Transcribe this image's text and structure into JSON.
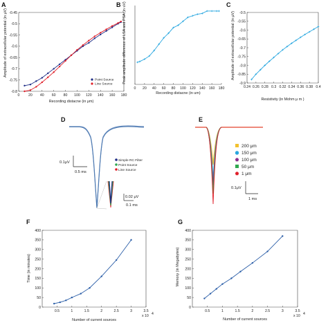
{
  "chart_data": [
    {
      "panel": "A",
      "type": "line",
      "xlabel": "Recording distacne (in μm)",
      "ylabel": "Amplitude  of  extracellular potential (in μV)",
      "xlim": [
        0,
        180
      ],
      "ylim": [
        -0.8,
        -0.45
      ],
      "xticks": [
        0,
        20,
        40,
        60,
        80,
        100,
        120,
        140,
        160,
        180
      ],
      "yticks": [
        -0.8,
        -0.75,
        -0.7,
        -0.65,
        -0.6,
        -0.55,
        -0.5,
        -0.45
      ],
      "xtick_labels": [
        "0",
        "20",
        "40",
        "60",
        "80",
        "100",
        "120",
        "140",
        "160",
        "180"
      ],
      "ytick_labels": [
        "-0.8",
        "-0.75",
        "-0.7",
        "-0.65",
        "-0.6",
        "-0.55",
        "-0.5",
        "-0.45"
      ],
      "legend_position": "bottom-right",
      "series": [
        {
          "name": "Point Source",
          "color": "#1f2d86",
          "x": [
            10,
            20,
            30,
            40,
            50,
            60,
            70,
            80,
            90,
            100,
            110,
            120,
            130,
            140,
            150,
            160,
            170,
            175
          ],
          "y": [
            -0.775,
            -0.77,
            -0.755,
            -0.74,
            -0.72,
            -0.7,
            -0.68,
            -0.66,
            -0.64,
            -0.62,
            -0.6,
            -0.585,
            -0.565,
            -0.548,
            -0.532,
            -0.516,
            -0.5,
            -0.493
          ]
        },
        {
          "name": "Line Source",
          "color": "#e0202a",
          "x": [
            10,
            20,
            30,
            40,
            50,
            60,
            70,
            80,
            90,
            100,
            110,
            120,
            130,
            140,
            150,
            160,
            170,
            175
          ],
          "y": [
            -0.8,
            -0.795,
            -0.78,
            -0.76,
            -0.738,
            -0.715,
            -0.69,
            -0.665,
            -0.64,
            -0.616,
            -0.595,
            -0.575,
            -0.556,
            -0.54,
            -0.525,
            -0.51,
            -0.497,
            -0.49
          ]
        }
      ]
    },
    {
      "panel": "B",
      "type": "line",
      "xlabel": "Recording distacne (in um)",
      "ylabel": "Peak amplitude difference of LSA and PSA (in uV)",
      "xlim": [
        0,
        180
      ],
      "ylim": [
        0,
        1
      ],
      "xticks": [
        0,
        20,
        40,
        60,
        80,
        100,
        120,
        140,
        160,
        180
      ],
      "xtick_labels": [
        "0",
        "20",
        "40",
        "60",
        "80",
        "100",
        "120",
        "140",
        "160",
        "180"
      ],
      "series": [
        {
          "color": "#29a7e0",
          "x": [
            5,
            10,
            20,
            30,
            40,
            50,
            60,
            70,
            80,
            90,
            100,
            110,
            120,
            130,
            140,
            150,
            160,
            170,
            175
          ],
          "y": [
            0.28,
            0.29,
            0.32,
            0.36,
            0.43,
            0.51,
            0.59,
            0.65,
            0.72,
            0.75,
            0.8,
            0.85,
            0.87,
            0.89,
            0.9,
            0.93,
            0.93,
            0.93,
            0.93
          ]
        }
      ]
    },
    {
      "panel": "C",
      "type": "line",
      "xlabel": "Resistivity  (in Mohm μ m )",
      "ylabel": "Amplitude  of  extracellular potential (in μV)",
      "xlim": [
        0.24,
        0.4
      ],
      "ylim": [
        -0.9,
        -0.5
      ],
      "xticks": [
        0.24,
        0.26,
        0.28,
        0.3,
        0.32,
        0.34,
        0.36,
        0.38,
        0.4
      ],
      "yticks": [
        -0.9,
        -0.85,
        -0.8,
        -0.75,
        -0.7,
        -0.65,
        -0.6,
        -0.55,
        -0.5
      ],
      "xtick_labels": [
        "0.24",
        "0.26",
        "0.28",
        "0.3",
        "0.32",
        "0.34",
        "0.36",
        "0.38",
        "0.4"
      ],
      "ytick_labels": [
        "-0.9",
        "-0.85",
        "-0.8",
        "-0.75",
        "-0.7",
        "-0.65",
        "-0.6",
        "-0.55",
        "-0.5"
      ],
      "series": [
        {
          "color": "#29a7e0",
          "x": [
            0.25,
            0.26,
            0.27,
            0.28,
            0.29,
            0.3,
            0.31,
            0.32,
            0.33,
            0.34,
            0.35,
            0.36,
            0.37,
            0.38,
            0.39,
            0.4
          ],
          "y": [
            -0.88,
            -0.85,
            -0.825,
            -0.8,
            -0.777,
            -0.755,
            -0.733,
            -0.712,
            -0.693,
            -0.675,
            -0.658,
            -0.641,
            -0.625,
            -0.61,
            -0.595,
            -0.58
          ]
        }
      ]
    },
    {
      "panel": "D",
      "type": "line",
      "legend": [
        "Simple RC Filter",
        "Point Source",
        "Line Source"
      ],
      "legend_colors": [
        "#1f2d86",
        "#2fa84f",
        "#e0202a"
      ],
      "scalebars": {
        "v_main": "0.1μV",
        "h_main": "0.5 ms",
        "v_inset": "0.02 μV",
        "h_inset": "0.1 ms"
      }
    },
    {
      "panel": "E",
      "type": "line",
      "legend": [
        "200 μm",
        "150 μm",
        "100 μm",
        "50 μm",
        "1 μm"
      ],
      "legend_colors": [
        "#f2c12e",
        "#29a7e0",
        "#8e2c8f",
        "#2fa84f",
        "#e0202a"
      ],
      "legend_markers": [
        "square",
        "hexagon",
        "pentagon",
        "square",
        "pentagon"
      ],
      "scalebars": {
        "v_main": "0.1μV",
        "h_main": "1 ms"
      }
    },
    {
      "panel": "F",
      "type": "line",
      "xlabel": "Number of current sources",
      "ylabel": "Time (in minutes)",
      "xlim": [
        0,
        3.5
      ],
      "ylim": [
        0,
        400
      ],
      "x_multiplier": "x 10",
      "x_multiplier_exp": "4",
      "xticks": [
        0.5,
        1,
        1.5,
        2,
        2.5,
        3,
        3.5
      ],
      "yticks": [
        0,
        50,
        100,
        150,
        200,
        250,
        300,
        350,
        400
      ],
      "xtick_labels": [
        "0.5",
        "1",
        "1.5",
        "2",
        "2.5",
        "3",
        "3.5"
      ],
      "ytick_labels": [
        "0",
        "50",
        "100",
        "150",
        "200",
        "250",
        "300",
        "350",
        "400"
      ],
      "series": [
        {
          "color": "#2b5ea8",
          "x": [
            0.4,
            0.6,
            0.8,
            1.0,
            1.3,
            1.6,
            2.0,
            2.5,
            3.0
          ],
          "y": [
            18,
            25,
            35,
            50,
            70,
            100,
            160,
            245,
            350
          ]
        }
      ]
    },
    {
      "panel": "G",
      "type": "line",
      "xlabel": "Number of current sources",
      "ylabel": "Memory (in Megabytes)",
      "xlim": [
        0,
        3.5
      ],
      "ylim": [
        0,
        400
      ],
      "x_multiplier": "x 10",
      "x_multiplier_exp": "4",
      "xticks": [
        0.5,
        1,
        1.5,
        2,
        2.5,
        3,
        3.5
      ],
      "yticks": [
        0,
        50,
        100,
        150,
        200,
        250,
        300,
        350,
        400
      ],
      "xtick_labels": [
        "0.5",
        "1",
        "1.5",
        "2",
        "2.5",
        "3",
        "3.5"
      ],
      "ytick_labels": [
        "0",
        "50",
        "100",
        "150",
        "200",
        "250",
        "300",
        "350",
        "400"
      ],
      "series": [
        {
          "color": "#2b5ea8",
          "x": [
            0.4,
            0.6,
            0.8,
            1.0,
            1.3,
            1.6,
            2.0,
            2.5,
            3.0
          ],
          "y": [
            45,
            70,
            95,
            120,
            150,
            185,
            230,
            290,
            370
          ]
        }
      ]
    }
  ]
}
